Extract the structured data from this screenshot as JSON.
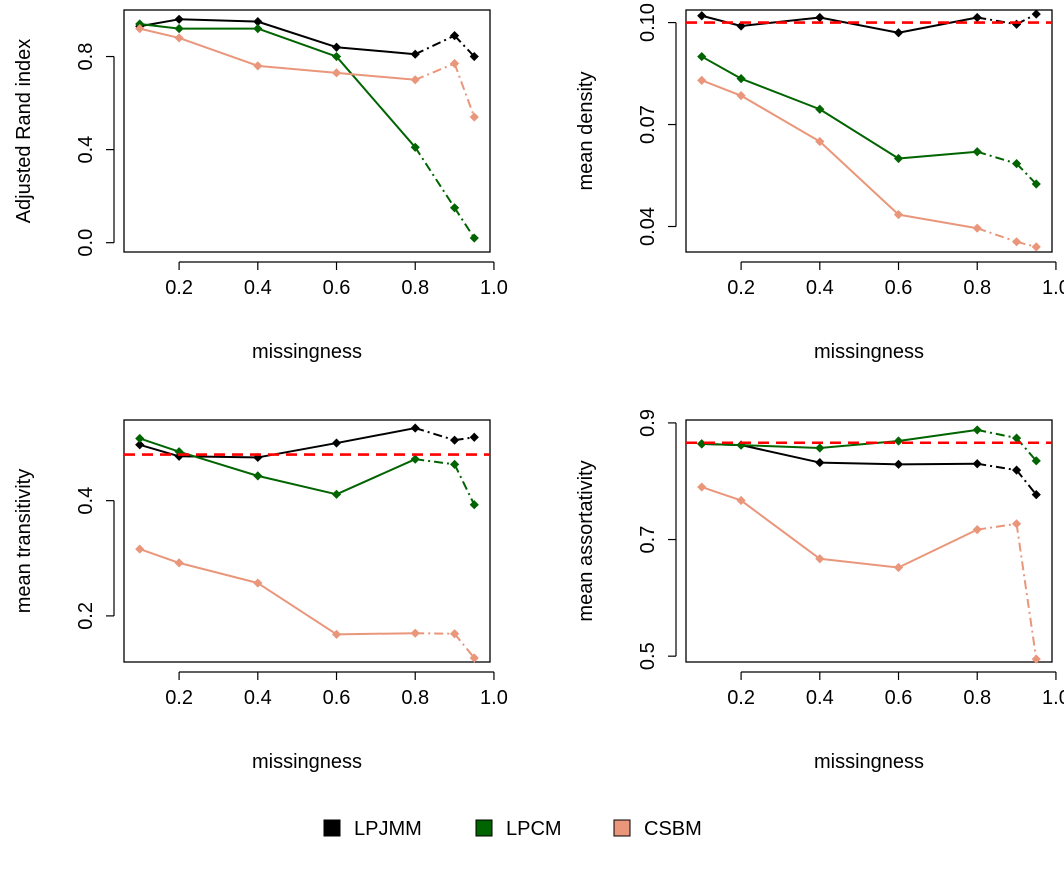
{
  "series_styles": [
    {
      "name": "LPJMM",
      "color": "#000000"
    },
    {
      "name": "LPCM",
      "color": "#006400"
    },
    {
      "name": "CSBM",
      "color": "#E9967A"
    }
  ],
  "reference_color": "#FF0000",
  "chart_data": [
    {
      "type": "line",
      "xlabel": "missingness",
      "ylabel": "Adjusted Rand index",
      "x": [
        0.1,
        0.2,
        0.4,
        0.6,
        0.8,
        0.9,
        0.95
      ],
      "xlim": [
        0.06,
        0.99
      ],
      "ylim": [
        -0.04,
        1.0
      ],
      "xticks": [
        0.2,
        0.4,
        0.6,
        0.8,
        1.0
      ],
      "xtick_labels": [
        "0.2",
        "0.4",
        "0.6",
        "0.8",
        "1.0"
      ],
      "yticks": [
        0.0,
        0.4,
        0.8
      ],
      "ytick_labels": [
        "0.0",
        "0.4",
        "0.8"
      ],
      "reference_line": null,
      "series": [
        {
          "name": "LPJMM",
          "values": [
            0.93,
            0.96,
            0.95,
            0.84,
            0.81,
            0.89,
            0.8
          ]
        },
        {
          "name": "LPCM",
          "values": [
            0.94,
            0.92,
            0.92,
            0.8,
            0.41,
            0.15,
            0.02
          ]
        },
        {
          "name": "CSBM",
          "values": [
            0.92,
            0.88,
            0.76,
            0.73,
            0.7,
            0.77,
            0.54
          ]
        }
      ]
    },
    {
      "type": "line",
      "xlabel": "missingness",
      "ylabel": "mean density",
      "x": [
        0.1,
        0.2,
        0.4,
        0.6,
        0.8,
        0.9,
        0.95
      ],
      "xlim": [
        0.06,
        0.99
      ],
      "ylim": [
        0.0325,
        0.1037
      ],
      "xticks": [
        0.2,
        0.4,
        0.6,
        0.8,
        1.0
      ],
      "xtick_labels": [
        "0.2",
        "0.4",
        "0.6",
        "0.8",
        "1.0"
      ],
      "yticks": [
        0.04,
        0.07,
        0.1
      ],
      "ytick_labels": [
        "0.04",
        "0.07",
        "0.10"
      ],
      "reference_line": 0.1,
      "series": [
        {
          "name": "LPJMM",
          "values": [
            0.102,
            0.099,
            0.1015,
            0.097,
            0.1015,
            0.0995,
            0.1025
          ]
        },
        {
          "name": "LPCM",
          "values": [
            0.09,
            0.0835,
            0.0745,
            0.06,
            0.062,
            0.0585,
            0.0525
          ]
        },
        {
          "name": "CSBM",
          "values": [
            0.083,
            0.0785,
            0.065,
            0.0435,
            0.0395,
            0.0355,
            0.034
          ]
        }
      ]
    },
    {
      "type": "line",
      "xlabel": "missingness",
      "ylabel": "mean transitivity",
      "x": [
        0.1,
        0.2,
        0.4,
        0.6,
        0.8,
        0.9,
        0.95
      ],
      "xlim": [
        0.06,
        0.99
      ],
      "ylim": [
        0.12,
        0.54
      ],
      "xticks": [
        0.2,
        0.4,
        0.6,
        0.8,
        1.0
      ],
      "xtick_labels": [
        "0.2",
        "0.4",
        "0.6",
        "0.8",
        "1.0"
      ],
      "yticks": [
        0.2,
        0.4
      ],
      "ytick_labels": [
        "0.2",
        "0.4"
      ],
      "reference_line": 0.48,
      "series": [
        {
          "name": "LPJMM",
          "values": [
            0.497,
            0.477,
            0.475,
            0.5,
            0.526,
            0.505,
            0.51
          ]
        },
        {
          "name": "LPCM",
          "values": [
            0.508,
            0.485,
            0.443,
            0.411,
            0.472,
            0.463,
            0.393
          ]
        },
        {
          "name": "CSBM",
          "values": [
            0.316,
            0.292,
            0.257,
            0.168,
            0.17,
            0.169,
            0.127
          ]
        }
      ]
    },
    {
      "type": "line",
      "xlabel": "missingness",
      "ylabel": "mean assortativity",
      "x": [
        0.1,
        0.2,
        0.4,
        0.6,
        0.8,
        0.9,
        0.95
      ],
      "xlim": [
        0.06,
        0.99
      ],
      "ylim": [
        0.49,
        0.905
      ],
      "xticks": [
        0.2,
        0.4,
        0.6,
        0.8,
        1.0
      ],
      "xtick_labels": [
        "0.2",
        "0.4",
        "0.6",
        "0.8",
        "1.0"
      ],
      "yticks": [
        0.5,
        0.7,
        0.9
      ],
      "ytick_labels": [
        "0.5",
        "0.7",
        "0.9"
      ],
      "reference_line": 0.866,
      "series": [
        {
          "name": "LPJMM",
          "values": [
            0.864,
            0.862,
            0.832,
            0.829,
            0.83,
            0.819,
            0.777
          ]
        },
        {
          "name": "LPCM",
          "values": [
            0.864,
            0.862,
            0.857,
            0.869,
            0.888,
            0.874,
            0.835
          ]
        },
        {
          "name": "CSBM",
          "values": [
            0.79,
            0.767,
            0.667,
            0.652,
            0.717,
            0.727,
            0.495
          ]
        }
      ]
    }
  ]
}
